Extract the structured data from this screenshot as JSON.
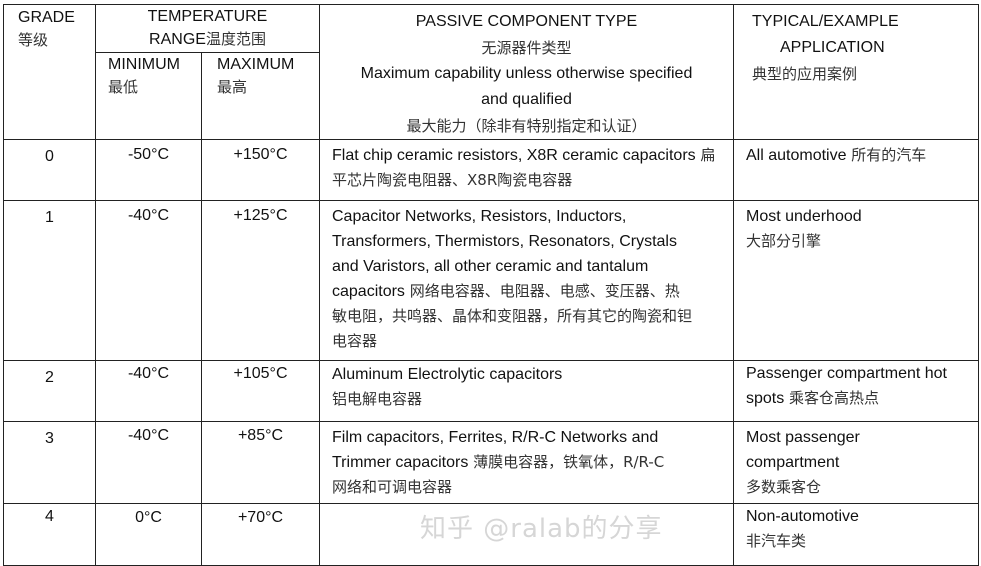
{
  "header": {
    "grade": "GRADE",
    "grade_zh": "等级",
    "temp_range": "TEMPERATURE",
    "temp_range2": "RANGE",
    "temp_range_zh": "温度范围",
    "minimum": "MINIMUM",
    "minimum_zh": "最低",
    "maximum": "MAXIMUM",
    "maximum_zh": "最高",
    "component_type": "PASSIVE COMPONENT TYPE",
    "component_type_zh": "无源器件类型",
    "component_note": "Maximum capability unless otherwise specified",
    "component_note2": "and qualified",
    "component_note_zh": "最大能力（除非有特别指定和认证）",
    "application": "TYPICAL/EXAMPLE",
    "application2": "APPLICATION",
    "application_zh": "典型的应用案例"
  },
  "rows": [
    {
      "grade": "0",
      "min": "-50°C",
      "max": "+150°C",
      "type_en": "Flat chip ceramic resistors, X8R ceramic capacitors",
      "type_zh": " 扁平芯片陶瓷电阻器、X8R陶瓷电容器",
      "app_en": "All automotive",
      "app_zh": " 所有的汽车"
    },
    {
      "grade": "1",
      "min": "-40°C",
      "max": "+125°C",
      "type_en": "Capacitor Networks, Resistors, Inductors, Transformers, Thermistors, Resonators, Crystals and Varistors, all other ceramic and tantalum capacitors",
      "type_zh": " 网络电容器、电阻器、电感、变压器、热敏电阻，共鸣器、晶体和变阻器，所有其它的陶瓷和钽电容器",
      "app_en": "Most underhood",
      "app_zh": "大部分引擎"
    },
    {
      "grade": "2",
      "min": "-40°C",
      "max": "+105°C",
      "type_en": "Aluminum Electrolytic capacitors",
      "type_zh": "铝电解电容器",
      "app_en": "Passenger compartment hot spots",
      "app_zh": "  乘客仓高热点"
    },
    {
      "grade": "3",
      "min": "-40°C",
      "max": "+85°C",
      "type_en": "Film capacitors, Ferrites, R/R-C Networks and Trimmer capacitors",
      "type_zh": "  薄膜电容器，铁氧体，R/R-C网络和可调电容器",
      "app_en": "Most passenger compartment",
      "app_zh": "多数乘客仓"
    },
    {
      "grade": "4",
      "min": "0°C",
      "max": "+70°C",
      "type_en": "",
      "type_zh": "",
      "app_en": "Non-automotive",
      "app_zh": "非汽车类"
    }
  ],
  "watermark": "知乎 @ralab的分享"
}
